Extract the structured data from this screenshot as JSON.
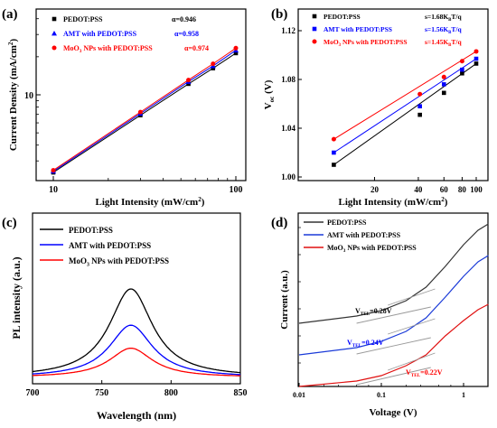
{
  "chart_data": [
    {
      "panel": "(a)",
      "type": "line",
      "xlabel": "Light Intensity (mW/cm",
      "xlabel_sup": "2",
      "xlabel_end": ")",
      "ylabel": "Current Density (mA/cm",
      "ylabel_sup": "2",
      "ylabel_end": ")",
      "xscale": "log",
      "yscale": "log",
      "xlim": [
        10,
        100
      ],
      "ylim": [
        2.1,
        41
      ],
      "xticks": [
        10,
        100
      ],
      "yticks": [
        10
      ],
      "x": [
        10,
        30,
        55,
        75,
        100
      ],
      "series": [
        {
          "name": "PEDOT:PSS",
          "alpha_label": "α=0.946",
          "color": "#000000",
          "marker": "square",
          "y": [
            2.43,
            6.89,
            12.2,
            16.22,
            21.35
          ]
        },
        {
          "name": "AMT with PEDOT:PSS",
          "alpha_label": "α=0.958",
          "color": "#0000ff",
          "marker": "triangle",
          "y": [
            2.48,
            7.11,
            12.7,
            16.9,
            22.5
          ]
        },
        {
          "name": "MoO3 NPs with PEDOT:PSS",
          "alpha_label": "α=0.974",
          "color": "#ff0000",
          "marker": "circle",
          "y": [
            2.53,
            7.3,
            13.1,
            17.6,
            23.4
          ]
        }
      ],
      "legend": "top-left"
    },
    {
      "panel": "(b)",
      "type": "scatter",
      "xlabel": "Light Intensity (mW/cm",
      "xlabel_sup": "2",
      "xlabel_end": ")",
      "ylabel": "V",
      "ylabel_sub": "oc",
      "ylabel_end": " (V)",
      "xscale": "log",
      "xlim": [
        9,
        110
      ],
      "ylim": [
        1.0,
        1.14
      ],
      "xticks": [
        20,
        40,
        60,
        80,
        100
      ],
      "yticks": [
        "1.00",
        "1.04",
        "1.08",
        "1.12"
      ],
      "x": [
        10.5,
        41,
        60,
        80,
        100
      ],
      "series": [
        {
          "name": "PEDOT:PSS",
          "slope_label": "s=1.68K",
          "slope_sub": "B",
          "slope_end": "T/q",
          "color": "#000000",
          "marker": "square",
          "y": [
            1.01,
            1.051,
            1.069,
            1.085,
            1.093
          ]
        },
        {
          "name": "AMT with PEDOT:PSS",
          "slope_label": "s=1.56K",
          "slope_sub": "B",
          "slope_end": "T/q",
          "color": "#0000ff",
          "marker": "square",
          "y": [
            1.02,
            1.058,
            1.076,
            1.088,
            1.097
          ]
        },
        {
          "name": "MoO3 NPs with PEDOT:PSS",
          "slope_label": "s=1.45K",
          "slope_sub": "B",
          "slope_end": "T/q",
          "color": "#ff0000",
          "marker": "circle",
          "y": [
            1.031,
            1.068,
            1.082,
            1.095,
            1.103
          ]
        }
      ],
      "legend": "top"
    },
    {
      "panel": "(c)",
      "type": "line",
      "xlabel": "Wavelength (nm)",
      "ylabel": "PL intensity (a.u.)",
      "xlim": [
        700,
        850
      ],
      "xticks": [
        700,
        750,
        800,
        850
      ],
      "peak_nm": 771,
      "series": [
        {
          "name": "PEDOT:PSS",
          "color": "#000000",
          "peak": 1.0
        },
        {
          "name": "AMT with PEDOT:PSS",
          "color": "#0000ff",
          "peak": 0.59
        },
        {
          "name": "MoO3 NPs with PEDOT:PSS",
          "color": "#ff0000",
          "peak": 0.33
        }
      ],
      "legend": "top-left"
    },
    {
      "panel": "(d)",
      "type": "line",
      "xlabel": "Voltage (V)",
      "ylabel": "Current (a.u.)",
      "xscale": "log",
      "xlim": [
        0.01,
        2
      ],
      "xticks": [
        "0.01",
        "0.1",
        "1"
      ],
      "series": [
        {
          "name": "PEDOT:PSS",
          "color": "#333333",
          "vtel": "V",
          "vtel_sub": "TEL",
          "vtel_end": "=0.28V",
          "vtel_color": "#000000"
        },
        {
          "name": "AMT with PEDOT:PSS",
          "color": "#1a3ad8",
          "vtel": "V",
          "vtel_sub": "TEL",
          "vtel_end": "=0.24V",
          "vtel_color": "#0000ff"
        },
        {
          "name": "MoO3 NPs with PEDOT:PSS",
          "color": "#e01010",
          "vtel": "V",
          "vtel_sub": "TEL",
          "vtel_end": "=0.22V",
          "vtel_color": "#ff0000"
        }
      ],
      "legend": "top"
    }
  ]
}
